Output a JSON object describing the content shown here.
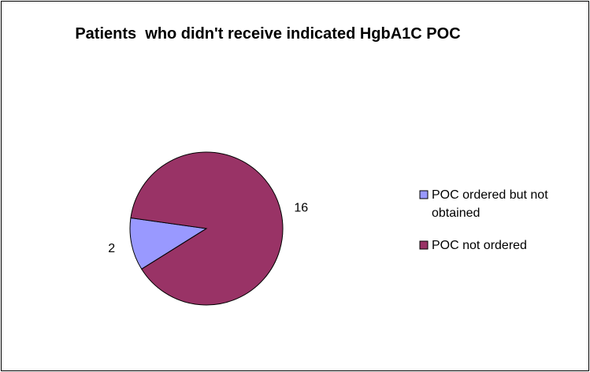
{
  "chart_data": {
    "type": "pie",
    "title": "Patients  who didn't receive indicated HgbA1C POC",
    "categories": [
      "POC ordered but not obtained",
      "POC not ordered"
    ],
    "values": [
      2,
      16
    ],
    "colors": [
      "#9999ff",
      "#993366"
    ],
    "legend": "right"
  }
}
